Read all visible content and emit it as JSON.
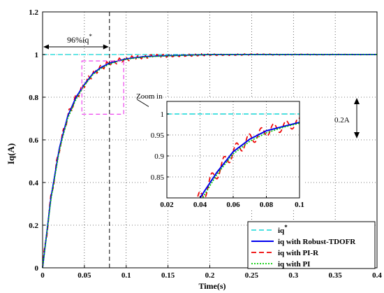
{
  "chart_data": {
    "type": "line",
    "xlabel": "Time(s)",
    "ylabel": "Iq(A)",
    "xlim": [
      0,
      0.4
    ],
    "ylim": [
      0,
      1.2
    ],
    "x_ticks": [
      "0",
      "0.05",
      "0.1",
      "0.15",
      "0.2",
      "0.25",
      "0.3",
      "0.35",
      "0.4"
    ],
    "y_ticks": [
      "0",
      "0.2",
      "0.4",
      "0.6",
      "0.8",
      "1",
      "1.2"
    ],
    "grid": true,
    "legend_position": "bottom-right",
    "series": [
      {
        "name": "iq*",
        "color": "#33dddd",
        "style": "dashed",
        "x": [
          0,
          0.4
        ],
        "y": [
          1,
          1
        ]
      },
      {
        "name": "iq with Robust-TDOFR",
        "color": "#0000ee",
        "style": "solid",
        "x": [
          0,
          0.01,
          0.02,
          0.03,
          0.04,
          0.05,
          0.06,
          0.07,
          0.08,
          0.09,
          0.1,
          0.12,
          0.15,
          0.2,
          0.25,
          0.3,
          0.4
        ],
        "y": [
          0,
          0.33,
          0.56,
          0.71,
          0.8,
          0.86,
          0.91,
          0.94,
          0.96,
          0.97,
          0.98,
          0.99,
          0.995,
          1.0,
          1.0,
          1.0,
          1.0
        ]
      },
      {
        "name": "iq with PI-R",
        "color": "#ee0000",
        "style": "dashed",
        "x": [
          0,
          0.01,
          0.02,
          0.03,
          0.04,
          0.05,
          0.06,
          0.07,
          0.08,
          0.09,
          0.1,
          0.12,
          0.15,
          0.2,
          0.25,
          0.3,
          0.4
        ],
        "y": [
          0,
          0.33,
          0.56,
          0.71,
          0.8,
          0.86,
          0.91,
          0.94,
          0.96,
          0.97,
          0.98,
          0.99,
          0.995,
          1.0,
          1.0,
          1.0,
          1.0
        ],
        "ripple": 0.025
      },
      {
        "name": "iq with PI",
        "color": "#00cc00",
        "style": "dotted",
        "x": [
          0,
          0.01,
          0.02,
          0.03,
          0.04,
          0.05,
          0.06,
          0.07,
          0.08,
          0.09,
          0.1,
          0.12,
          0.15,
          0.2,
          0.25,
          0.3,
          0.4
        ],
        "y": [
          0,
          0.32,
          0.55,
          0.7,
          0.79,
          0.855,
          0.905,
          0.935,
          0.955,
          0.968,
          0.978,
          0.988,
          0.994,
          1.0,
          1.0,
          1.0,
          1.0
        ]
      }
    ],
    "annotations": {
      "percent_label": "96%iq",
      "percent_superscript": "*",
      "zoom_label": "Zoom in",
      "amplitude_label": "0.2A",
      "marker_x": 0.08,
      "zoom_box": {
        "x0": 0.047,
        "x1": 0.097,
        "y0": 0.72,
        "y1": 0.97
      }
    },
    "inset": {
      "xlim": [
        0.02,
        0.1
      ],
      "ylim": [
        0.8,
        1.03
      ],
      "x_ticks": [
        "0.02",
        "0.04",
        "0.06",
        "0.08",
        "0.1"
      ],
      "y_ticks": [
        "0.85",
        "0.9",
        "0.95",
        "1"
      ],
      "grid": true
    }
  }
}
